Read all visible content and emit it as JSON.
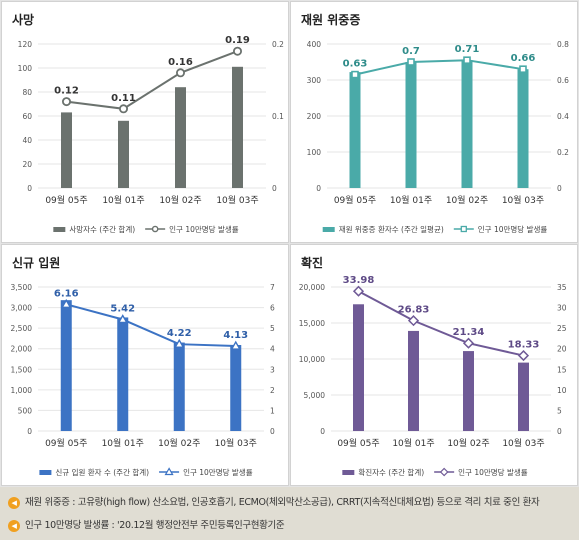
{
  "chart_data": [
    {
      "id": "deaths",
      "type": "bar+line",
      "title": "사망",
      "categories": [
        "09월 05주",
        "10월 01주",
        "10월 02주",
        "10월 03주"
      ],
      "bar_series": {
        "name": "사망자수 (주간 합계)",
        "values": [
          63,
          56,
          84,
          101
        ],
        "color": "#6b726e"
      },
      "line_series": {
        "name": "인구 10만명당 발생률",
        "values": [
          0.12,
          0.11,
          0.16,
          0.19
        ],
        "labels": [
          "0.12",
          "0.11",
          "0.16",
          "0.19"
        ],
        "color": "#6b726e",
        "marker": "circle"
      },
      "left_axis": {
        "min": 0,
        "max": 120,
        "ticks": [
          "0",
          "20",
          "40",
          "60",
          "80",
          "100",
          "120"
        ]
      },
      "right_axis": {
        "min": 0,
        "max": 0.2,
        "ticks": [
          "0",
          "0.1",
          "0.2"
        ]
      },
      "label_color": "#333333"
    },
    {
      "id": "severe",
      "type": "bar+line",
      "title": "재원 위중증",
      "categories": [
        "09월 05주",
        "10월 01주",
        "10월 02주",
        "10월 03주"
      ],
      "bar_series": {
        "name": "재원 위중증 환자수 (주간 일평균)",
        "values": [
          322,
          350,
          355,
          330
        ],
        "color": "#4aaaa8"
      },
      "line_series": {
        "name": "인구 10만명당 발생률",
        "values": [
          0.63,
          0.7,
          0.71,
          0.66
        ],
        "labels": [
          "0.63",
          "0.7",
          "0.71",
          "0.66"
        ],
        "color": "#4aaaa8",
        "marker": "square"
      },
      "left_axis": {
        "min": 0,
        "max": 400,
        "ticks": [
          "0",
          "100",
          "200",
          "300",
          "400"
        ]
      },
      "right_axis": {
        "min": 0,
        "max": 0.8,
        "ticks": [
          "0",
          "0.2",
          "0.4",
          "0.6",
          "0.8"
        ]
      },
      "label_color": "#2f8c8a"
    },
    {
      "id": "admissions",
      "type": "bar+line",
      "title": "신규 입원",
      "categories": [
        "09월 05주",
        "10월 01주",
        "10월 02주",
        "10월 03주"
      ],
      "bar_series": {
        "name": "신규 입원 환자 수 (주간 합계)",
        "values": [
          3180,
          2760,
          2150,
          2090
        ],
        "color": "#3c73c4"
      },
      "line_series": {
        "name": "인구 10만명당 발생률",
        "values": [
          6.16,
          5.42,
          4.22,
          4.13
        ],
        "labels": [
          "6.16",
          "5.42",
          "4.22",
          "4.13"
        ],
        "color": "#3c73c4",
        "marker": "triangle"
      },
      "left_axis": {
        "min": 0,
        "max": 3500,
        "ticks": [
          "0",
          "500",
          "1,000",
          "1,500",
          "2,000",
          "2,500",
          "3,000",
          "3,500"
        ]
      },
      "right_axis": {
        "min": 0,
        "max": 7,
        "ticks": [
          "0",
          "1",
          "2",
          "3",
          "4",
          "5",
          "6",
          "7"
        ]
      },
      "label_color": "#2f5fa8"
    },
    {
      "id": "confirmed",
      "type": "bar+line",
      "title": "확진",
      "categories": [
        "09월 05주",
        "10월 01주",
        "10월 02주",
        "10월 03주"
      ],
      "bar_series": {
        "name": "확진자수 (주간 합계)",
        "values": [
          17600,
          13900,
          11100,
          9500
        ],
        "color": "#6f5a96"
      },
      "line_series": {
        "name": "인구 10만명당 발생률",
        "values": [
          33.98,
          26.83,
          21.34,
          18.33
        ],
        "labels": [
          "33.98",
          "26.83",
          "21.34",
          "18.33"
        ],
        "color": "#6f5a96",
        "marker": "diamond"
      },
      "left_axis": {
        "min": 0,
        "max": 20000,
        "ticks": [
          "0",
          "5,000",
          "10,000",
          "15,000",
          "20,000"
        ]
      },
      "right_axis": {
        "min": 0,
        "max": 35,
        "ticks": [
          "0",
          "5",
          "10",
          "15",
          "20",
          "25",
          "30",
          "35"
        ]
      },
      "label_color": "#5e4a86"
    }
  ],
  "notes": [
    "재원 위중증 : 고유량(high flow) 산소요법, 인공호흡기, ECMO(체외막산소공급), CRRT(지속적신대체요법) 등으로 격리 치료 중인 환자",
    "인구 10만명당 발생률 : '20.12월 행정안전부 주민등록인구현황기준"
  ],
  "colors": {
    "grid": "#e6e6e6",
    "axis_text": "#555555",
    "note_icon": "#f0a020"
  }
}
